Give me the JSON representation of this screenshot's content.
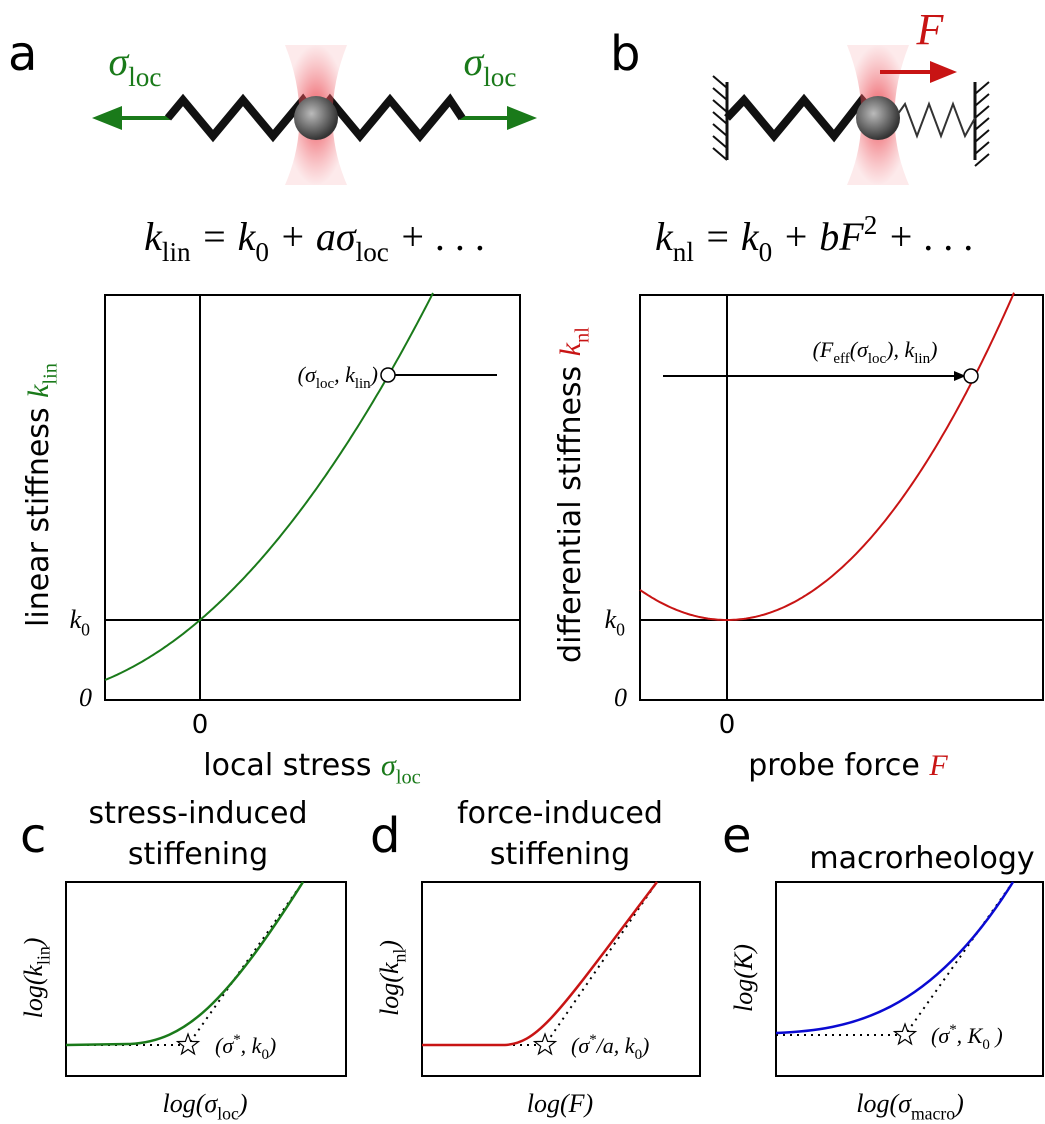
{
  "panel_a": {
    "letter": "a",
    "force_labels": [
      [
        {
          "text": "σ",
          "sub": "loc"
        }
      ],
      [
        {
          "text": "σ",
          "sub": "loc"
        }
      ]
    ],
    "equation": [
      {
        "text": "k",
        "sub": "lin"
      },
      {
        "text": " = k",
        "sub": "0"
      },
      {
        "text": " + aσ",
        "sub": "loc"
      },
      {
        "text": " + . . ."
      }
    ],
    "y_label": {
      "text": "linear stiffness ",
      "symbol": [
        {
          "text": "k",
          "sub": "lin"
        }
      ]
    },
    "x_label": {
      "text": "local stress ",
      "symbol": [
        {
          "text": "σ",
          "sub": "loc"
        }
      ]
    },
    "y_ticks": [
      [
        {
          "text": "k",
          "sub": "0"
        }
      ],
      [
        {
          "text": "0"
        }
      ]
    ],
    "x_tick": "0",
    "point_label": [
      {
        "text": "(σ",
        "sub": "loc"
      },
      {
        "text": ", k",
        "sub": "lin"
      },
      {
        "text": ")"
      }
    ]
  },
  "panel_b": {
    "letter": "b",
    "force_label": [
      {
        "text": "F"
      }
    ],
    "equation": [
      {
        "text": "k",
        "sub": "nl"
      },
      {
        "text": " = k",
        "sub": "0"
      },
      {
        "text": " + bF",
        "sup": "2"
      },
      {
        "text": " + . . ."
      }
    ],
    "y_label": {
      "text": "differential stiffness ",
      "symbol": [
        {
          "text": "k",
          "sub": "nl"
        }
      ]
    },
    "x_label": {
      "text": "probe force ",
      "symbol": [
        {
          "text": "F"
        }
      ]
    },
    "y_ticks": [
      [
        {
          "text": "k",
          "sub": "0"
        }
      ],
      [
        {
          "text": "0"
        }
      ]
    ],
    "x_tick": "0",
    "point_label": [
      {
        "text": "(F",
        "sub": "eff"
      },
      {
        "text": "(σ",
        "sub": "loc"
      },
      {
        "text": "), k",
        "sub": "lin"
      },
      {
        "text": ")"
      }
    ]
  },
  "panel_c": {
    "letter": "c",
    "title": [
      "stress-induced",
      "stiffening"
    ],
    "y_label": [
      {
        "text": "log(k",
        "sub": "lin"
      },
      {
        "text": ")"
      }
    ],
    "x_label": [
      {
        "text": "log(σ",
        "sub": "loc"
      },
      {
        "text": ")"
      }
    ],
    "point_label": [
      {
        "text": "(σ",
        "sup": "*"
      },
      {
        "text": ",  k",
        "sub": "0"
      },
      {
        "text": ")"
      }
    ]
  },
  "panel_d": {
    "letter": "d",
    "title": [
      "force-induced",
      "stiffening"
    ],
    "y_label": [
      {
        "text": "log(k",
        "sub": "nl"
      },
      {
        "text": ")"
      }
    ],
    "x_label": [
      {
        "text": "log(F)"
      }
    ],
    "point_label": [
      {
        "text": "(σ",
        "sup": "*"
      },
      {
        "text": "/a,  k",
        "sub": "0"
      },
      {
        "text": ")"
      }
    ]
  },
  "panel_e": {
    "letter": "e",
    "title": [
      "macrorheology"
    ],
    "y_label": [
      {
        "text": "log(K)"
      }
    ],
    "x_label": [
      {
        "text": "log(σ",
        "sub": "macro"
      },
      {
        "text": ")"
      }
    ],
    "point_label": [
      {
        "text": "(σ",
        "sup": "*"
      },
      {
        "text": ",  K",
        "sub": "0"
      },
      {
        "text": " )"
      }
    ]
  }
}
